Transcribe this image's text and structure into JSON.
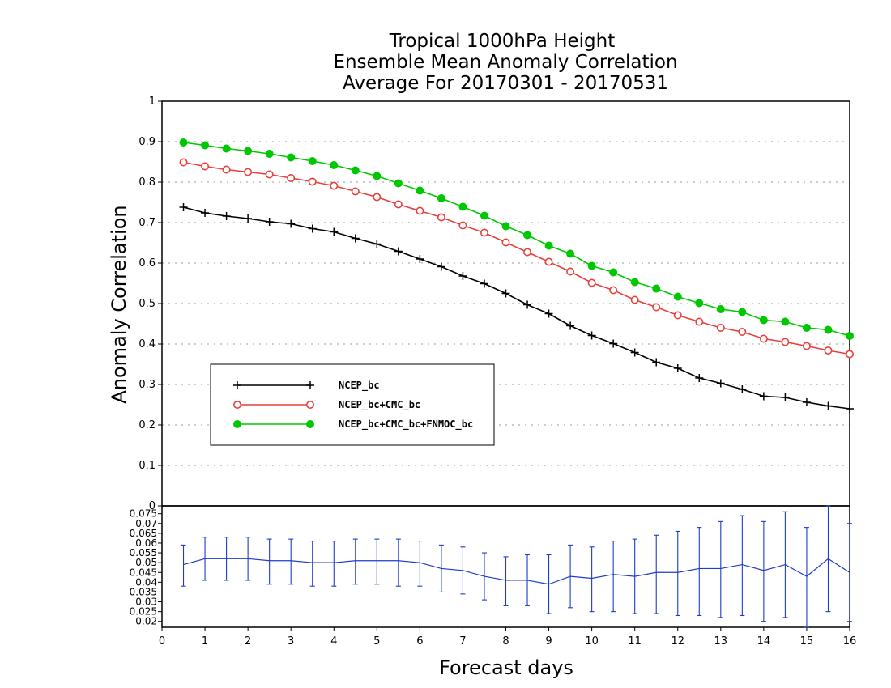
{
  "chart_data": [
    {
      "type": "line",
      "title": [
        "Tropical 1000hPa Height",
        "Ensemble Mean Anomaly Correlation",
        "Average For 20170301 - 20170531"
      ],
      "ylabel": "Anomaly Correlation",
      "xlabel": "Forecast days",
      "xlim": [
        0,
        16
      ],
      "ylim": [
        0,
        1
      ],
      "xticks": [
        "0",
        "1",
        "2",
        "3",
        "4",
        "5",
        "6",
        "7",
        "8",
        "9",
        "10",
        "11",
        "12",
        "13",
        "14",
        "15",
        "16"
      ],
      "yticks": [
        "0",
        "0.1",
        "0.2",
        "0.3",
        "0.4",
        "0.5",
        "0.6",
        "0.7",
        "0.8",
        "0.9",
        "1"
      ],
      "grid": true,
      "legend_position": "lower-left",
      "x": [
        0.5,
        1,
        1.5,
        2,
        2.5,
        3,
        3.5,
        4,
        4.5,
        5,
        5.5,
        6,
        6.5,
        7,
        7.5,
        8,
        8.5,
        9,
        9.5,
        10,
        10.5,
        11,
        11.5,
        12,
        12.5,
        13,
        13.5,
        14,
        14.5,
        15,
        15.5,
        16
      ],
      "series": [
        {
          "name": "NCEP_bc",
          "color": "#000000",
          "marker": "plus",
          "values": [
            0.738,
            0.724,
            0.716,
            0.71,
            0.702,
            0.697,
            0.685,
            0.677,
            0.661,
            0.647,
            0.629,
            0.61,
            0.591,
            0.568,
            0.549,
            0.525,
            0.497,
            0.475,
            0.445,
            0.421,
            0.401,
            0.379,
            0.355,
            0.34,
            0.316,
            0.303,
            0.288,
            0.271,
            0.268,
            0.256,
            0.247,
            0.24
          ]
        },
        {
          "name": "NCEP_bc+CMC_bc",
          "color": "#e8403c",
          "marker": "open-circle",
          "values": [
            0.849,
            0.839,
            0.831,
            0.825,
            0.819,
            0.81,
            0.801,
            0.791,
            0.777,
            0.763,
            0.745,
            0.729,
            0.713,
            0.693,
            0.675,
            0.651,
            0.627,
            0.603,
            0.579,
            0.551,
            0.533,
            0.509,
            0.491,
            0.471,
            0.455,
            0.44,
            0.43,
            0.413,
            0.405,
            0.395,
            0.384,
            0.375
          ]
        },
        {
          "name": "NCEP_bc+CMC_bc+FNMOC_bc",
          "color": "#00c800",
          "marker": "filled-circle",
          "values": [
            0.898,
            0.891,
            0.883,
            0.877,
            0.87,
            0.861,
            0.852,
            0.842,
            0.829,
            0.815,
            0.797,
            0.779,
            0.76,
            0.739,
            0.717,
            0.691,
            0.669,
            0.643,
            0.623,
            0.593,
            0.577,
            0.553,
            0.537,
            0.517,
            0.501,
            0.486,
            0.479,
            0.459,
            0.455,
            0.44,
            0.435,
            0.42
          ]
        }
      ]
    },
    {
      "type": "line",
      "xlim": [
        0,
        16
      ],
      "ylim": [
        0.017,
        0.079
      ],
      "yticks": [
        "0.02",
        "0.025",
        "0.03",
        "0.035",
        "0.04",
        "0.045",
        "0.05",
        "0.055",
        "0.06",
        "0.065",
        "0.07",
        "0.075"
      ],
      "grid": false,
      "x": [
        0.5,
        1,
        1.5,
        2,
        2.5,
        3,
        3.5,
        4,
        4.5,
        5,
        5.5,
        6,
        6.5,
        7,
        7.5,
        8,
        8.5,
        9,
        9.5,
        10,
        10.5,
        11,
        11.5,
        12,
        12.5,
        13,
        13.5,
        14,
        14.5,
        15,
        15.5,
        16
      ],
      "series": [
        {
          "color": "#1e3cc8",
          "values": [
            0.049,
            0.052,
            0.052,
            0.052,
            0.051,
            0.051,
            0.05,
            0.05,
            0.051,
            0.051,
            0.051,
            0.05,
            0.047,
            0.046,
            0.043,
            0.041,
            0.041,
            0.039,
            0.043,
            0.042,
            0.044,
            0.043,
            0.045,
            0.045,
            0.047,
            0.047,
            0.049,
            0.046,
            0.049,
            0.043,
            0.052,
            0.045
          ],
          "error_low": [
            0.038,
            0.041,
            0.041,
            0.041,
            0.039,
            0.039,
            0.038,
            0.038,
            0.039,
            0.039,
            0.038,
            0.038,
            0.035,
            0.034,
            0.031,
            0.028,
            0.028,
            0.024,
            0.027,
            0.025,
            0.025,
            0.024,
            0.024,
            0.023,
            0.023,
            0.022,
            0.023,
            0.02,
            0.022,
            0.017,
            0.025,
            0.02
          ],
          "error_high": [
            0.059,
            0.063,
            0.063,
            0.063,
            0.062,
            0.062,
            0.061,
            0.061,
            0.062,
            0.062,
            0.062,
            0.061,
            0.059,
            0.058,
            0.055,
            0.053,
            0.054,
            0.054,
            0.059,
            0.058,
            0.061,
            0.062,
            0.064,
            0.066,
            0.068,
            0.071,
            0.074,
            0.071,
            0.076,
            0.068,
            0.079,
            0.07
          ]
        }
      ]
    }
  ]
}
